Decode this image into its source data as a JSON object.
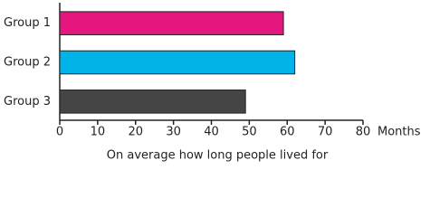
{
  "chart_data": {
    "type": "bar",
    "orientation": "horizontal",
    "title": "On average how long people lived for",
    "xlabel": "Months",
    "categories": [
      "Group 1",
      "Group 2",
      "Group 3"
    ],
    "values": [
      59,
      62,
      49
    ],
    "colors": [
      "#e5177e",
      "#00b4ea",
      "#454545"
    ],
    "xlim": [
      0,
      80
    ],
    "xticks": [
      0,
      10,
      20,
      30,
      40,
      50,
      60,
      70,
      80
    ]
  }
}
